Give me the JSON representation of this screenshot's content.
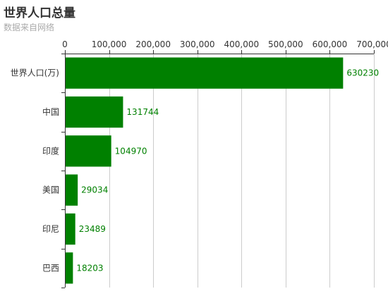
{
  "title": "世界人口总量",
  "subtitle": "数据来自网络",
  "colors": {
    "bar": "#008000",
    "label": "#008000",
    "axis": "#333333",
    "grid": "#cccccc"
  },
  "chart_data": {
    "type": "bar",
    "orientation": "horizontal",
    "title": "世界人口总量",
    "subtitle": "数据来自网络",
    "xaxis_position": "top",
    "xlim": [
      0,
      700000
    ],
    "xticks": [
      0,
      100000,
      200000,
      300000,
      400000,
      500000,
      600000,
      700000
    ],
    "xtick_labels": [
      "0",
      "100,000",
      "200,000",
      "300,000",
      "400,000",
      "500,000",
      "600,000",
      "700,000"
    ],
    "grid": true,
    "categories": [
      "世界人口(万)",
      "中国",
      "印度",
      "美国",
      "印尼",
      "巴西"
    ],
    "values": [
      630230,
      131744,
      104970,
      29034,
      23489,
      18203
    ],
    "value_labels": [
      "630230",
      "131744",
      "104970",
      "29034",
      "23489",
      "18203"
    ]
  }
}
